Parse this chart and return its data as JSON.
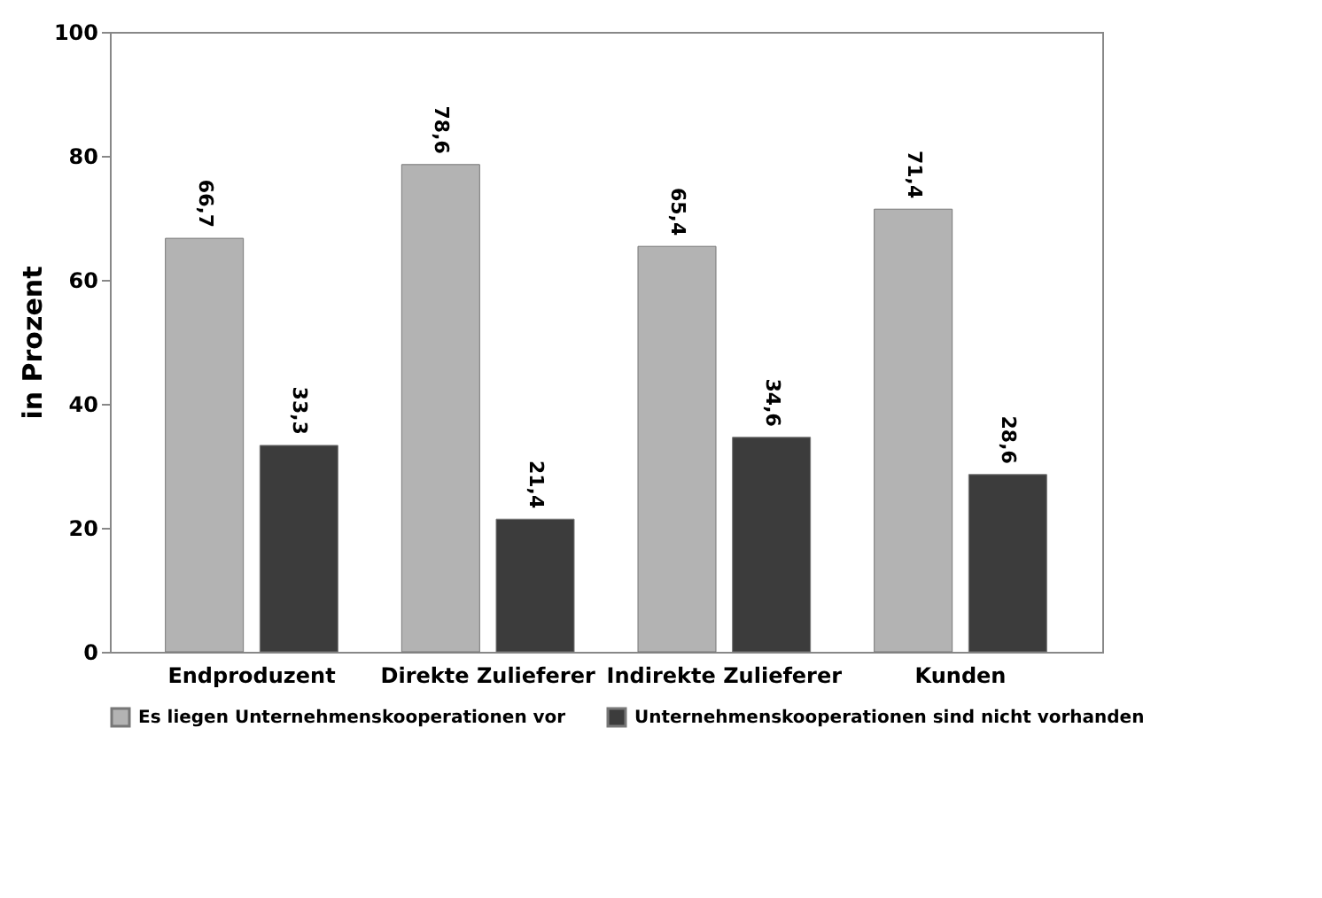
{
  "chart_data": {
    "type": "bar",
    "ylabel": "in Prozent",
    "categories": [
      "Endproduzent",
      "Direkte Zulieferer",
      "Indirekte Zulieferer",
      "Kunden"
    ],
    "series": [
      {
        "name": "Es liegen Unternehmenskooperationen vor",
        "color": "#b3b3b3",
        "values": [
          66.7,
          78.6,
          65.4,
          71.4
        ],
        "value_labels": [
          "66,7",
          "78,6",
          "65,4",
          "71,4"
        ]
      },
      {
        "name": "Unternehmenskooperationen sind nicht vorhanden",
        "color": "#3c3c3c",
        "values": [
          33.3,
          21.4,
          34.6,
          28.6
        ],
        "value_labels": [
          "33,3",
          "21,4",
          "34,6",
          "28,6"
        ]
      }
    ],
    "ylim": [
      0,
      100
    ],
    "yticks": [
      0,
      20,
      40,
      60,
      80,
      100
    ],
    "grid": false,
    "legend": "bottom"
  }
}
